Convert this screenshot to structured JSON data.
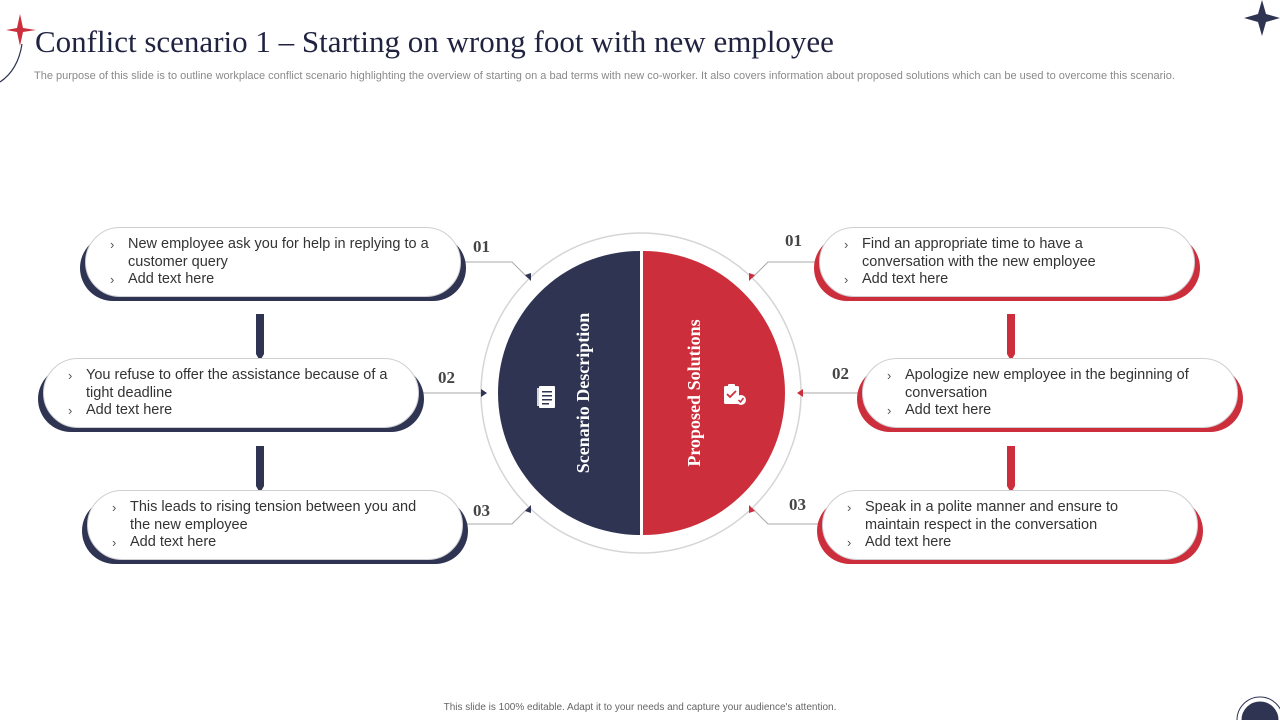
{
  "title": "Conflict scenario 1 – Starting on wrong foot with new employee",
  "subtitle": "The purpose of this slide is to outline workplace conflict scenario highlighting the overview of starting on a bad terms with new co-worker. It also covers information about proposed solutions which can be used to overcome this scenario.",
  "footer": "This slide is 100% editable. Adapt it to your needs and capture your audience's attention.",
  "colors": {
    "navy": "#2e3452",
    "red": "#cc2f3b"
  },
  "circle": {
    "left_label": "Scenario Description",
    "right_label": "Proposed Solutions",
    "left_icon": "document-icon",
    "right_icon": "clipboard-check-icon"
  },
  "scenario": [
    {
      "number": "01",
      "lines": [
        "New employee ask you for help in replying to a customer query",
        "Add text here"
      ]
    },
    {
      "number": "02",
      "lines": [
        "You refuse to offer the assistance because of a tight deadline",
        "Add text here"
      ]
    },
    {
      "number": "03",
      "lines": [
        "This leads to rising tension between you and the new employee",
        "Add text here"
      ]
    }
  ],
  "solutions": [
    {
      "number": "01",
      "lines": [
        "Find an appropriate time to have a conversation with the new employee",
        "Add text here"
      ]
    },
    {
      "number": "02",
      "lines": [
        "Apologize new employee in the beginning of conversation",
        "Add text here"
      ]
    },
    {
      "number": "03",
      "lines": [
        "Speak in a polite manner and ensure to maintain respect in the conversation",
        "Add text here"
      ]
    }
  ]
}
